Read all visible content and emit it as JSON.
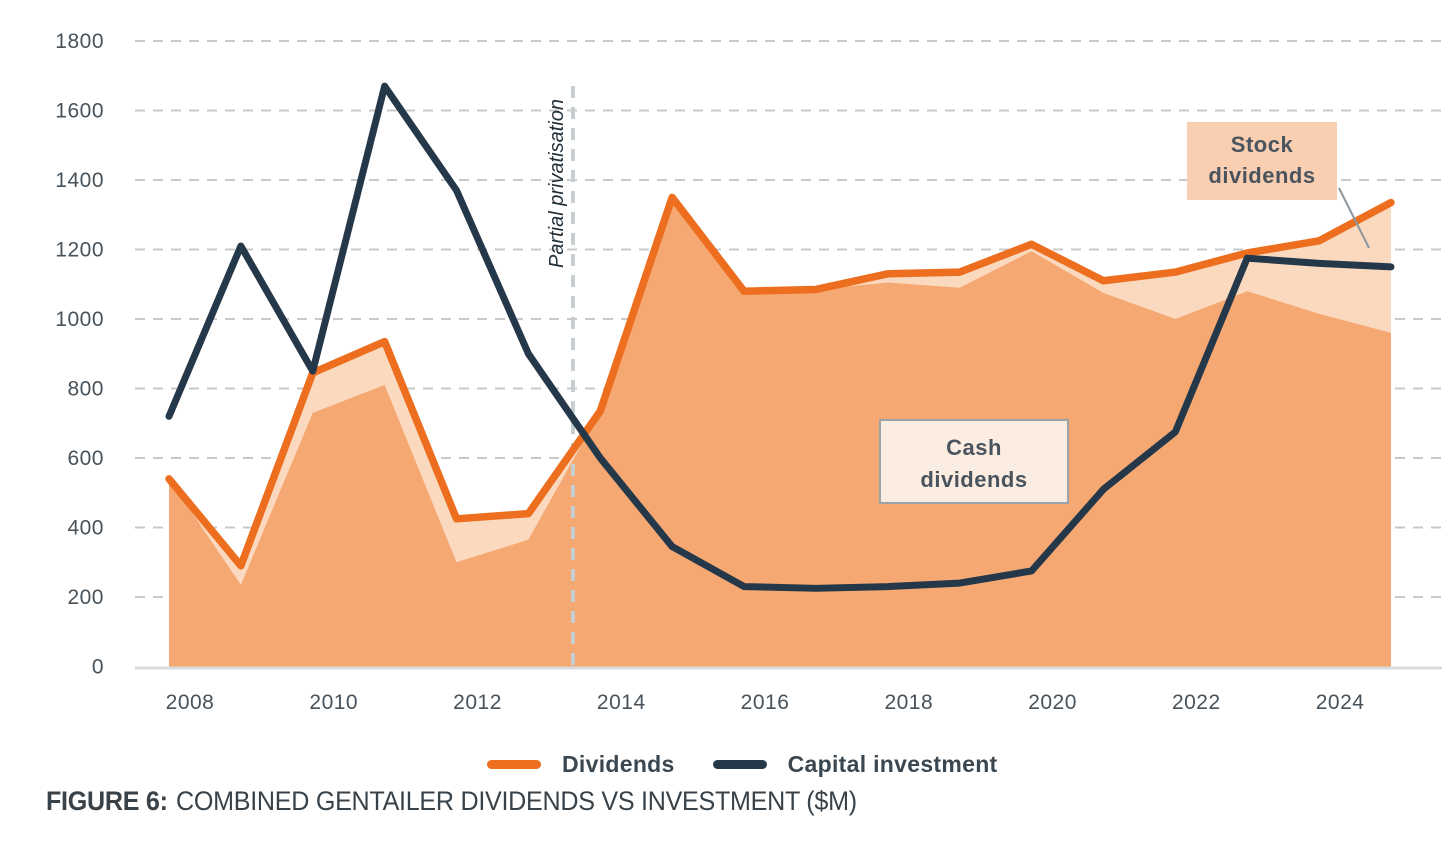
{
  "figure_caption": {
    "prefix": "FIGURE 6:",
    "title": "COMBINED GENTAILER DIVIDENDS VS INVESTMENT ($M)"
  },
  "chart_data": {
    "type": "area",
    "x": [
      2008,
      2009,
      2010,
      2011,
      2012,
      2013,
      2014,
      2015,
      2016,
      2017,
      2018,
      2019,
      2020,
      2021,
      2022,
      2023,
      2024,
      2025
    ],
    "series": [
      {
        "name": "Dividends",
        "type": "line",
        "color": "#EC6E1E",
        "values": [
          540,
          290,
          845,
          935,
          425,
          440,
          735,
          1350,
          1080,
          1085,
          1130,
          1135,
          1215,
          1110,
          1135,
          1190,
          1225,
          1335
        ]
      },
      {
        "name": "Cash dividends",
        "type": "area",
        "color": "#F5A872",
        "values": [
          540,
          235,
          730,
          810,
          300,
          365,
          735,
          1350,
          1080,
          1085,
          1105,
          1090,
          1195,
          1075,
          1000,
          1080,
          1015,
          960
        ]
      },
      {
        "name": "Stock dividends",
        "type": "area-band",
        "color": "#FBD9BF",
        "note": "band between cash dividends and total dividends line",
        "values": [
          0,
          55,
          115,
          125,
          125,
          75,
          0,
          0,
          0,
          0,
          25,
          45,
          20,
          35,
          135,
          110,
          210,
          375
        ]
      },
      {
        "name": "Capital investment",
        "type": "line",
        "color": "#25384A",
        "values": [
          720,
          1210,
          850,
          1670,
          1370,
          900,
          600,
          345,
          230,
          225,
          230,
          240,
          275,
          510,
          675,
          1175,
          1160,
          1150
        ]
      }
    ],
    "ylim": [
      0,
      1800
    ],
    "yticks": [
      1800,
      1600,
      1400,
      1200,
      1000,
      800,
      600,
      400,
      200,
      0
    ],
    "xticks": [
      2008,
      2010,
      2012,
      2014,
      2016,
      2018,
      2020,
      2022,
      2024
    ],
    "grid": "dashed horizontal",
    "legend": {
      "position": "bottom-center",
      "items": [
        {
          "label": "Dividends",
          "color": "#EC6E1E"
        },
        {
          "label": "Capital investment",
          "color": "#25384A"
        }
      ]
    },
    "annotations": {
      "privatisation": {
        "label": "Partial privatisation",
        "x_index": 5.62,
        "style": "vertical dashed line"
      },
      "cash_box": {
        "lines": [
          "Cash",
          "dividends"
        ],
        "bg": "#FCEDE2",
        "border": "#9BA3A9"
      },
      "stock_box": {
        "lines": [
          "Stock",
          "dividends"
        ],
        "bg": "#F9CEB1"
      }
    }
  }
}
